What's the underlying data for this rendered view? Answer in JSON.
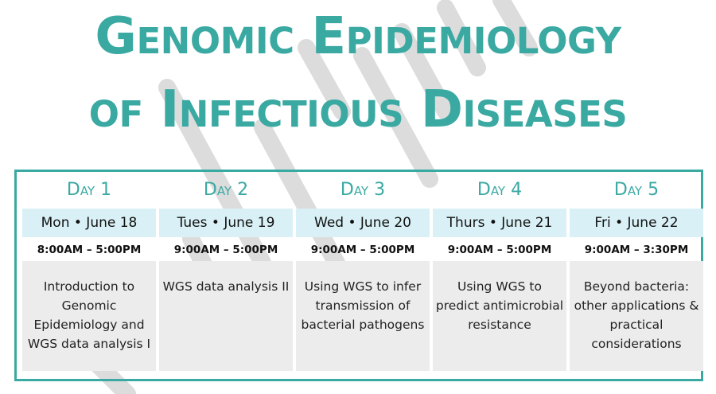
{
  "title": {
    "line1": "Genomic Epidemiology",
    "line2": "of Infectious Diseases"
  },
  "colors": {
    "accent": "#3aa9a2",
    "date_bg": "#d9f1f6",
    "desc_bg": "#ececec",
    "watermark": "#d6d6d6"
  },
  "days": [
    {
      "label": "Day 1",
      "date": "Mon • June 18",
      "time": "8:00AM – 5:00PM",
      "description": "Introduction to Genomic Epidemiology and WGS data analysis I"
    },
    {
      "label": "Day 2",
      "date": "Tues • June 19",
      "time": "9:00AM – 5:00PM",
      "description": "WGS data analysis II"
    },
    {
      "label": "Day 3",
      "date": "Wed • June 20",
      "time": "9:00AM – 5:00PM",
      "description": "Using WGS to infer transmission of bacterial pathogens"
    },
    {
      "label": "Day 4",
      "date": "Thurs • June 21",
      "time": "9:00AM – 5:00PM",
      "description": "Using WGS to predict antimicrobial resistance"
    },
    {
      "label": "Day 5",
      "date": "Fri • June 22",
      "time": "9:00AM – 3:30PM",
      "description": "Beyond bacteria: other applications & practical considerations"
    }
  ]
}
